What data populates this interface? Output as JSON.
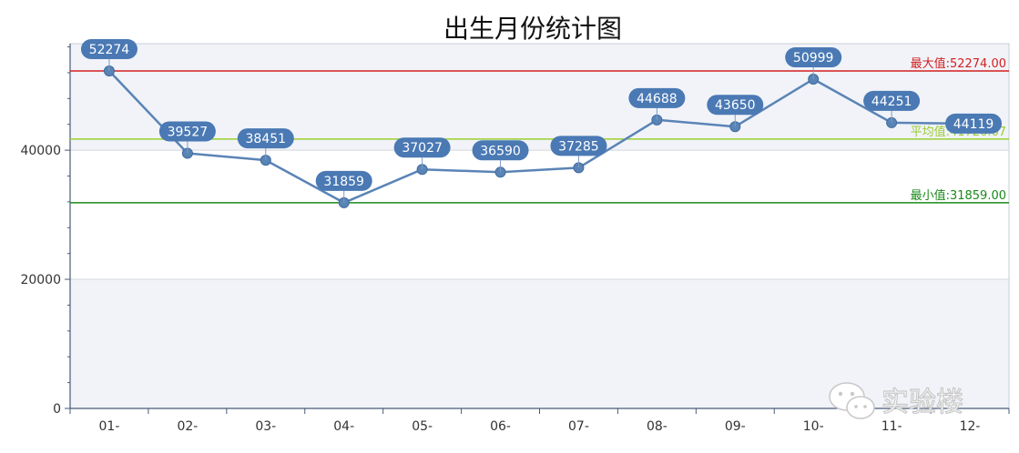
{
  "chart_data": {
    "type": "line",
    "title": "出生月份统计图",
    "categories": [
      "01-",
      "02-",
      "03-",
      "04-",
      "05-",
      "06-",
      "07-",
      "08-",
      "09-",
      "10-",
      "11-",
      "12-"
    ],
    "series": [
      {
        "values": [
          52274,
          39527,
          38451,
          31859,
          37027,
          36590,
          37285,
          44688,
          43650,
          50999,
          44251,
          44119
        ]
      }
    ],
    "ylim": [
      0,
      56500
    ],
    "yticks": [
      0,
      20000,
      40000
    ],
    "reference_lines": [
      {
        "label": "最大值:52274.00",
        "value": 52274,
        "color": "#d21f1f"
      },
      {
        "label": "平均值:41726.67",
        "value": 41726.67,
        "color": "#9acd32"
      },
      {
        "label": "最小值:31859.00",
        "value": 31859,
        "color": "#1a8a1a"
      }
    ],
    "colors": {
      "line": "#5a84b6",
      "label_bg": "#4a79b4",
      "band": "#f1f3f8"
    },
    "grid": true,
    "watermark": "实验楼"
  }
}
